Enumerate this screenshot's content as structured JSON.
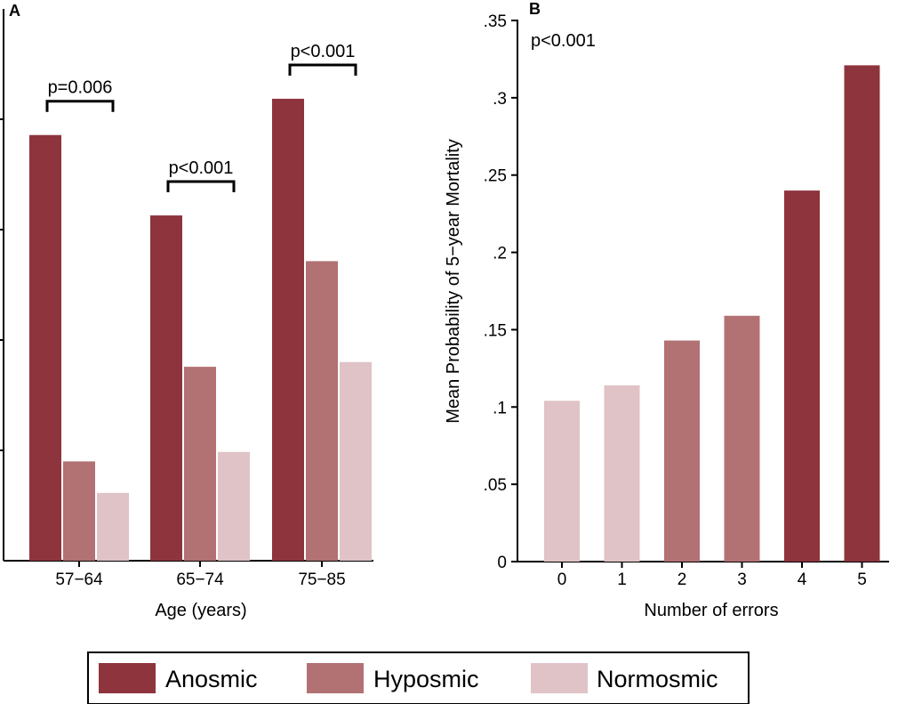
{
  "colors": {
    "anosmic": "#8e343d",
    "hyposmic": "#b27173",
    "normosmic": "#e0c3c6",
    "axis": "#000000"
  },
  "chart_data": [
    {
      "panel_label": "A",
      "type": "bar",
      "xlabel": "Age (years)",
      "ylabel": "",
      "ylim": [
        0,
        0.35
      ],
      "categories": [
        "57−64",
        "65−74",
        "75−85"
      ],
      "series": [
        {
          "name": "Anosmic",
          "color_key": "anosmic",
          "values": [
            0.27,
            0.219,
            0.293
          ]
        },
        {
          "name": "Hyposmic",
          "color_key": "hyposmic",
          "values": [
            0.063,
            0.123,
            0.19
          ]
        },
        {
          "name": "Normosmic",
          "color_key": "normosmic",
          "values": [
            0.043,
            0.069,
            0.126
          ]
        }
      ],
      "annotations": [
        {
          "category_index": 0,
          "text": "p=0.006"
        },
        {
          "category_index": 1,
          "text": "p<0.001"
        },
        {
          "category_index": 2,
          "text": "p<0.001"
        }
      ]
    },
    {
      "panel_label": "B",
      "type": "bar",
      "xlabel": "Number of errors",
      "ylabel": "Mean Probability of 5−year Mortality",
      "ylim": [
        0,
        0.35
      ],
      "yticks": [
        0,
        0.05,
        0.1,
        0.15,
        0.2,
        0.25,
        0.3,
        0.35
      ],
      "ytick_labels": [
        "0",
        ".05",
        ".1",
        ".15",
        ".2",
        ".25",
        ".3",
        ".35"
      ],
      "categories": [
        "0",
        "1",
        "2",
        "3",
        "4",
        "5"
      ],
      "values": [
        0.104,
        0.114,
        0.143,
        0.159,
        0.24,
        0.321
      ],
      "bar_color_keys": [
        "normosmic",
        "normosmic",
        "hyposmic",
        "hyposmic",
        "anosmic",
        "anosmic"
      ],
      "annotation": "p<0.001"
    }
  ],
  "legend": {
    "position": "bottom-center",
    "items": [
      {
        "label": "Anosmic",
        "color_key": "anosmic"
      },
      {
        "label": "Hyposmic",
        "color_key": "hyposmic"
      },
      {
        "label": "Normosmic",
        "color_key": "normosmic"
      }
    ]
  }
}
